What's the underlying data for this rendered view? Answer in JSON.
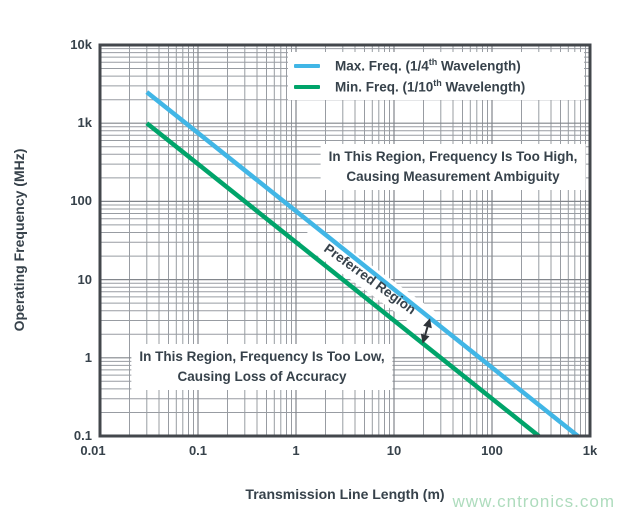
{
  "watermark": {
    "text": "www.cntronics.com",
    "color": "#aedcbd"
  },
  "chart_data": {
    "type": "line",
    "title": "",
    "x_axis": {
      "label": "Transmission Line Length (m)",
      "scale": "log",
      "min": 0.01,
      "max": 1000,
      "tick_labels": [
        "0.01",
        "0.1",
        "1",
        "10",
        "100",
        "1k"
      ],
      "tick_values": [
        0.01,
        0.1,
        1,
        10,
        100,
        1000
      ]
    },
    "y_axis": {
      "label": "Operating Frequency (MHz)",
      "scale": "log",
      "min": 0.1,
      "max": 10000,
      "tick_labels": [
        "10k",
        "1k",
        "100",
        "10",
        "1",
        "0.1"
      ],
      "tick_values": [
        10000,
        1000,
        100,
        10,
        1,
        0.1
      ]
    },
    "grid": {
      "show": true,
      "minor_color": "#989ca2",
      "major_color": "#82868c",
      "frame_color": "#43474c"
    },
    "legend_position": "top-right",
    "series": [
      {
        "name": "Max. Freq. (1/4th Wavelength)",
        "legend": {
          "pre": "Max. Freq. (1/4",
          "sup": "th",
          "post": " Wavelength)"
        },
        "color": "#41b6e6",
        "points": [
          [
            0.03,
            2500
          ],
          [
            750,
            0.1
          ]
        ]
      },
      {
        "name": "Min. Freq. (1/10th Wavelength)",
        "legend": {
          "pre": "Min. Freq. (1/10",
          "sup": "th",
          "post": " Wavelength)"
        },
        "color": "#00a46a",
        "points": [
          [
            0.03,
            1000
          ],
          [
            300,
            0.1
          ]
        ]
      }
    ],
    "annotations": {
      "too_high": {
        "line1": "In This Region, Frequency Is Too High,",
        "line2": "Causing Measurement Ambiguity"
      },
      "too_low": {
        "line1": "In This Region, Frequency Is Too Low,",
        "line2": "Causing Loss of Accuracy"
      },
      "preferred": {
        "text": "Preferred Region"
      },
      "arrow": {
        "type": "double-arrow",
        "color": "#2e3338",
        "from": [
          19.6,
          1.52
        ],
        "to": [
          23.3,
          3.2
        ]
      }
    }
  }
}
